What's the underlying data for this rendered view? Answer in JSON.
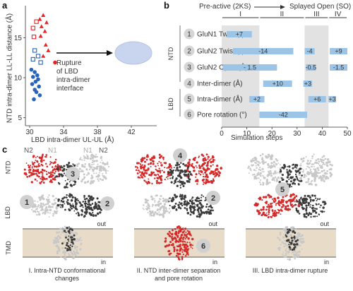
{
  "panel_labels": {
    "a": "a",
    "b": "b",
    "c": "c"
  },
  "panel_a": {
    "xlabel": "LBD intra-dimer UL-UL (Å)",
    "ylabel": "NTD intra-dimer LL-LL distance (Å)",
    "annotation": [
      "Rupture",
      "of LBD",
      "intra-dimer",
      "interface"
    ],
    "cross_glyph": "×"
  },
  "chart_data": [
    {
      "type": "scatter",
      "xlabel": "LBD intra-dimer UL-UL (Å)",
      "ylabel": "NTD intra-dimer LL-LL distance (Å)",
      "xlim": [
        29.5,
        45
      ],
      "ylim": [
        4,
        19
      ],
      "xticks": [
        30,
        34,
        38,
        42
      ],
      "yticks": [
        5,
        10,
        15
      ],
      "series": [
        {
          "name": "",
          "color": "#e8232a",
          "marker": "triangle",
          "x": [
            31.2,
            31.6,
            32.0,
            31.4,
            31.8,
            31.3,
            31.9,
            32.2,
            31.6
          ],
          "y": [
            17.3,
            17.8,
            16.9,
            16.4,
            15.8,
            15.2,
            14.1,
            13.4,
            12.7
          ]
        },
        {
          "name": "",
          "color": "#e8232a",
          "marker": "square-open",
          "x": [
            30.4,
            30.8,
            30.5
          ],
          "y": [
            16.2,
            17.0,
            15.1
          ]
        },
        {
          "name": "",
          "color": "#2a63b8",
          "marker": "square-open",
          "x": [
            30.6,
            31.0,
            30.4,
            31.3
          ],
          "y": [
            13.4,
            12.7,
            12.3,
            11.9
          ]
        },
        {
          "name": "",
          "color": "#2a63b8",
          "marker": "circle",
          "x": [
            30.2,
            30.6,
            30.9,
            30.4,
            31.0,
            30.7,
            30.3,
            31.1,
            30.6,
            30.8,
            31.2,
            30.5
          ],
          "y": [
            11.0,
            10.7,
            10.3,
            10.1,
            9.8,
            9.5,
            9.2,
            8.9,
            8.5,
            8.2,
            7.8,
            7.3
          ]
        },
        {
          "name": "",
          "color": "#e8232a",
          "marker": "circle",
          "x": [
            33.0
          ],
          "y": [
            11.9
          ]
        },
        {
          "name": "",
          "color": "#2a63b8",
          "marker": "cross",
          "x": [
            43.2
          ],
          "y": [
            13.9
          ]
        }
      ]
    },
    {
      "type": "bar",
      "xlabel": "Simulation steps",
      "xlim": [
        0,
        50
      ],
      "xticks": [
        0,
        10,
        20,
        30,
        40,
        50
      ],
      "phases": [
        {
          "label": "I",
          "start": 0,
          "end": 15,
          "shaded": true
        },
        {
          "label": "II",
          "start": 15,
          "end": 33,
          "shaded": false
        },
        {
          "label": "III",
          "start": 33,
          "end": 42.5,
          "shaded": true
        },
        {
          "label": "IV",
          "start": 42.5,
          "end": 50,
          "shaded": false
        }
      ],
      "rows": [
        {
          "num": "1",
          "label": "GluN1 Twist (°)",
          "bars": [
            {
              "start": 2,
              "end": 12,
              "value": "+7"
            }
          ]
        },
        {
          "num": "2",
          "label": "GluN2 Twist (°)",
          "bars": [
            {
              "start": 4.5,
              "end": 28.5,
              "value": "-14"
            },
            {
              "start": 33,
              "end": 37,
              "value": "-4"
            },
            {
              "start": 43,
              "end": 50,
              "value": "+9"
            }
          ]
        },
        {
          "num": "3",
          "label": "GluN2 Open (Å)",
          "bars": [
            {
              "start": 0.5,
              "end": 22,
              "value": "- 1.5"
            },
            {
              "start": 33.5,
              "end": 37.5,
              "value": "-0.5"
            },
            {
              "start": 43,
              "end": 50,
              "value": "-1.5"
            }
          ]
        },
        {
          "num": "4",
          "label": "Inter-dimer (Å)",
          "bars": [
            {
              "start": 16.5,
              "end": 28,
              "value": "+10"
            },
            {
              "start": 32.5,
              "end": 36,
              "value": "+3"
            }
          ]
        },
        {
          "num": "5",
          "label": "Intra-dimer (Å)",
          "bars": [
            {
              "start": 11,
              "end": 17,
              "value": "+2"
            },
            {
              "start": 34.5,
              "end": 41.5,
              "value": "+6"
            },
            {
              "start": 42.5,
              "end": 45.5,
              "value": "+3"
            }
          ]
        },
        {
          "num": "6",
          "label": "Pore rotation (°)",
          "bars": [
            {
              "start": 15,
              "end": 34,
              "value": "-42"
            }
          ]
        }
      ]
    }
  ],
  "panel_b": {
    "state_start": "Pre-active (2KS)",
    "state_end": "Splayed Open (SO)",
    "ntd": "NTD",
    "lbd": "LBD",
    "bar_color": "#9cc4e6",
    "shade_color": "#e2e2e2"
  },
  "panel_c": {
    "domains": {
      "ntd": "NTD",
      "lbd": "LBD",
      "tmd": "TMD"
    },
    "subunits": {
      "n2_left": "N2",
      "n1_left": "N1",
      "n1_right": "N1",
      "n2_right": "N2"
    },
    "membrane": {
      "out": "out",
      "in": "in"
    },
    "structures": [
      {
        "markers": [
          "1",
          "2",
          "3"
        ],
        "caption": [
          "I. Intra-NTD conformational",
          "changes"
        ]
      },
      {
        "markers": [
          "4",
          "2",
          "6"
        ],
        "caption": [
          "II. NTD inter-dimer separation",
          "and pore rotation"
        ]
      },
      {
        "markers": [
          "5"
        ],
        "caption": [
          "III. LBD intra-dimer rupture"
        ]
      }
    ],
    "colors": {
      "red": "#d42a2a",
      "dark": "#3a3a3a",
      "light": "#c8c8c8",
      "membrane": "#e8dcc8",
      "membrane_edge": "#8a8a8a"
    }
  }
}
